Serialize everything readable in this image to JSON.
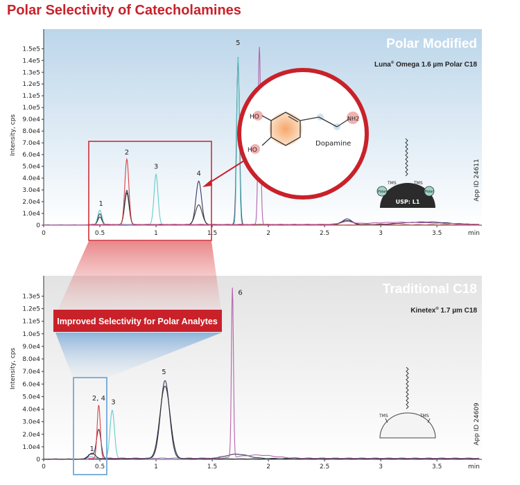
{
  "title": "Polar Selectivity of Catecholamines",
  "colors": {
    "brand_red": "#c9212a",
    "series_dark": "#2e2c57",
    "series_red": "#d8373a",
    "series_teal": "#5ec8c4",
    "series_magenta": "#b15aa6",
    "series_black": "#2c2c2c",
    "highlight_blue": "#6fa9d6"
  },
  "callout": {
    "text": "Improved Selectivity for Polar Analytes"
  },
  "molecule": {
    "name": "Dopamine",
    "atoms": [
      "HO",
      "HO",
      "NH2"
    ]
  },
  "chart_data": [
    {
      "type": "line",
      "title": "Polar Modified",
      "subtitle_brand": "Luna",
      "subtitle_rest": " Omega 1.6 µm Polar C18",
      "ylabel": "Intensity, cps",
      "xlabel": "min",
      "xlim": [
        0,
        3.9
      ],
      "ylim": [
        0,
        155000
      ],
      "x_ticks": [
        "0",
        "0.5",
        "1",
        "1.5",
        "2",
        "2.5",
        "3",
        "3.5"
      ],
      "y_ticks": [
        "0",
        "1.0e4",
        "2.0e4",
        "3.0e4",
        "4.0e4",
        "5.0e4",
        "6.0e4",
        "7.0e4",
        "8.0e4",
        "9.0e4",
        "1.0e5",
        "1.1e5",
        "1.2e5",
        "1.3e5",
        "1.4e5",
        "1.5e5"
      ],
      "app_id": "App ID 24611",
      "usp_label": "USP: L1",
      "ligand_labels": [
        "TMS",
        "TMS",
        "Polar",
        "Polar"
      ],
      "peak_labels": [
        {
          "label": "1",
          "x": 0.51,
          "y": 16500
        },
        {
          "label": "2",
          "x": 0.74,
          "y": 60000
        },
        {
          "label": "3",
          "x": 1.0,
          "y": 48000
        },
        {
          "label": "4",
          "x": 1.38,
          "y": 42000
        },
        {
          "label": "5",
          "x": 1.73,
          "y": 153000
        }
      ],
      "series": [
        {
          "color": "#2e2c57",
          "peaks": [
            [
              0.5,
              9000,
              0.018
            ],
            [
              0.74,
              29000,
              0.02
            ],
            [
              1.38,
              37000,
              0.025
            ],
            [
              1.73,
              139000,
              0.013
            ],
            [
              2.7,
              3500,
              0.05
            ],
            [
              3.4,
              2200,
              0.2
            ]
          ],
          "baseline": 400
        },
        {
          "color": "#2c2c2c",
          "peaks": [
            [
              0.5,
              6500,
              0.018
            ],
            [
              0.74,
              27000,
              0.02
            ],
            [
              1.38,
              17000,
              0.03
            ],
            [
              2.7,
              5000,
              0.04
            ]
          ],
          "baseline": 300
        },
        {
          "color": "#5ec8c4",
          "peaks": [
            [
              0.5,
              12500,
              0.018
            ],
            [
              1.0,
              43000,
              0.018
            ],
            [
              1.73,
              145000,
              0.011
            ]
          ],
          "baseline": 200
        },
        {
          "color": "#d8373a",
          "peaks": [
            [
              0.74,
              56000,
              0.018
            ]
          ],
          "baseline": 100
        },
        {
          "color": "#b15aa6",
          "peaks": [
            [
              1.92,
              151000,
              0.011
            ],
            [
              2.7,
              2000,
              0.05
            ],
            [
              3.2,
              1800,
              0.3
            ]
          ],
          "baseline": 500
        }
      ]
    },
    {
      "type": "line",
      "title": "Traditional C18",
      "subtitle_brand": "Kinetex",
      "subtitle_rest": " 1.7 µm C18",
      "ylabel": "Intensity, cps",
      "xlabel": "min",
      "xlim": [
        0,
        3.9
      ],
      "ylim": [
        0,
        136000
      ],
      "x_ticks": [
        "0",
        "0.5",
        "1",
        "1.5",
        "2",
        "2.5",
        "3",
        "3.5"
      ],
      "y_ticks": [
        "0",
        "1.0e4",
        "2.0e4",
        "3.0e4",
        "4.0e4",
        "5.0e4",
        "6.0e4",
        "7.0e4",
        "8.0e4",
        "9.0e4",
        "1.0e5",
        "1.1e5",
        "1.2e5",
        "1.3e5"
      ],
      "app_id": "App ID 24609",
      "ligand_labels": [
        "TMS",
        "TMS"
      ],
      "peak_labels": [
        {
          "label": "1",
          "x": 0.43,
          "y": 6500
        },
        {
          "label": "2, 4",
          "x": 0.49,
          "y": 47000
        },
        {
          "label": "3",
          "x": 0.62,
          "y": 44000
        },
        {
          "label": "5",
          "x": 1.07,
          "y": 68000
        },
        {
          "label": "6",
          "x": 1.75,
          "y": 131000
        }
      ],
      "series": [
        {
          "color": "#2e2c57",
          "peaks": [
            [
              0.42,
              3500,
              0.03
            ],
            [
              0.49,
              23000,
              0.02
            ],
            [
              1.08,
              62000,
              0.04
            ],
            [
              1.72,
              3500,
              0.1
            ]
          ],
          "baseline": 500
        },
        {
          "color": "#d8373a",
          "peaks": [
            [
              0.49,
              43000,
              0.014
            ]
          ],
          "baseline": 200
        },
        {
          "color": "#5ec8c4",
          "peaks": [
            [
              0.42,
              2000,
              0.03
            ],
            [
              0.61,
              39000,
              0.02
            ]
          ],
          "baseline": 150
        },
        {
          "color": "#b15aa6",
          "peaks": [
            [
              1.68,
              135000,
              0.009
            ],
            [
              1.9,
              2500,
              0.15
            ]
          ],
          "baseline": 700
        },
        {
          "color": "#2c2c2c",
          "peaks": [
            [
              0.43,
              4500,
              0.03
            ],
            [
              1.08,
              58000,
              0.045
            ]
          ],
          "baseline": 300
        }
      ]
    }
  ]
}
